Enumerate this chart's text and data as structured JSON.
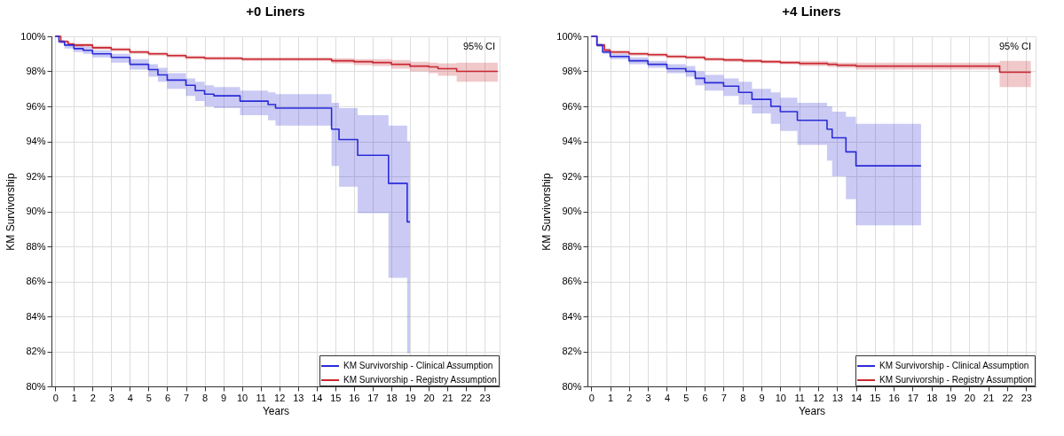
{
  "chart_data": [
    {
      "type": "step",
      "title": "+0 Liners",
      "xlabel": "Years",
      "ylabel": "KM Survivorship",
      "annotations": [
        "95% CI"
      ],
      "legend": "bottom right",
      "grid": true,
      "line_style": "solid",
      "xlim": [
        -0.2,
        23.8
      ],
      "xticks": [
        0,
        1,
        2,
        3,
        4,
        5,
        6,
        7,
        8,
        9,
        10,
        11,
        12,
        13,
        14,
        15,
        16,
        17,
        18,
        19,
        20,
        21,
        22,
        23
      ],
      "ylim": [
        80,
        100
      ],
      "yticks": [
        {
          "value": 80,
          "label": "80%"
        },
        {
          "value": 82,
          "label": "82%"
        },
        {
          "value": 84,
          "label": "84%"
        },
        {
          "value": 86,
          "label": "86%"
        },
        {
          "value": 88,
          "label": "88%"
        },
        {
          "value": 90,
          "label": "90%"
        },
        {
          "value": 92,
          "label": "92%"
        },
        {
          "value": 94,
          "label": "94%"
        },
        {
          "value": 96,
          "label": "96%"
        },
        {
          "value": 98,
          "label": "98%"
        },
        {
          "value": 100,
          "label": "100%"
        }
      ],
      "series": [
        {
          "name": "KM Survivorship - Clinical Assumption",
          "color": "#2b2bd8",
          "x": [
            0,
            0.2,
            0.5,
            1,
            1.5,
            2,
            3,
            4,
            5,
            5.5,
            6,
            7,
            7.5,
            8,
            8.5,
            9.9,
            11.4,
            11.8,
            14.8,
            15.2,
            16.2,
            17.85,
            18.85,
            19.0
          ],
          "values": [
            100,
            99.7,
            99.5,
            99.3,
            99.2,
            99.0,
            98.8,
            98.4,
            98.1,
            97.8,
            97.5,
            97.2,
            96.9,
            96.7,
            96.6,
            96.3,
            96.1,
            95.9,
            94.7,
            94.1,
            93.2,
            91.6,
            89.4,
            89.4
          ],
          "lower": [
            100,
            99.6,
            99.3,
            99.1,
            99.0,
            98.8,
            98.5,
            98.1,
            97.7,
            97.4,
            97.0,
            96.6,
            96.3,
            96.0,
            95.9,
            95.5,
            95.2,
            94.9,
            92.6,
            91.4,
            89.9,
            86.2,
            81.9,
            81.9
          ],
          "upper": [
            100,
            99.8,
            99.6,
            99.5,
            99.4,
            99.2,
            99.0,
            98.7,
            98.4,
            98.2,
            97.9,
            97.6,
            97.4,
            97.2,
            97.1,
            96.9,
            96.8,
            96.7,
            96.2,
            95.9,
            95.5,
            94.9,
            94.0,
            94.0
          ]
        },
        {
          "name": "KM Survivorship - Registry Assumption",
          "color": "#c8262e",
          "x": [
            0,
            0.3,
            0.7,
            1,
            2,
            3,
            4,
            5,
            6,
            7,
            8,
            10,
            14.8,
            16,
            17,
            18,
            19,
            20,
            20.5,
            21.5,
            23.7
          ],
          "values": [
            100,
            99.7,
            99.55,
            99.5,
            99.35,
            99.25,
            99.1,
            99.0,
            98.9,
            98.8,
            98.75,
            98.7,
            98.6,
            98.55,
            98.5,
            98.4,
            98.3,
            98.25,
            98.15,
            98.0,
            98.0
          ],
          "lower": [
            100,
            99.6,
            99.45,
            99.4,
            99.25,
            99.15,
            99.0,
            98.9,
            98.8,
            98.7,
            98.65,
            98.6,
            98.45,
            98.35,
            98.3,
            98.15,
            98.0,
            97.9,
            97.75,
            97.4,
            97.4
          ],
          "upper": [
            100,
            99.8,
            99.65,
            99.6,
            99.45,
            99.35,
            99.2,
            99.1,
            99.0,
            98.9,
            98.85,
            98.8,
            98.75,
            98.7,
            98.7,
            98.65,
            98.55,
            98.5,
            98.45,
            98.5,
            98.5
          ]
        }
      ]
    },
    {
      "type": "step",
      "title": "+4 Liners",
      "xlabel": "Years",
      "ylabel": "KM Survivorship",
      "annotations": [
        "95% CI"
      ],
      "legend": "bottom right",
      "grid": true,
      "line_style": "solid",
      "xlim": [
        -0.2,
        23.5
      ],
      "xticks": [
        0,
        1,
        2,
        3,
        4,
        5,
        6,
        7,
        8,
        9,
        10,
        11,
        12,
        13,
        14,
        15,
        16,
        17,
        18,
        19,
        20,
        21,
        22,
        23
      ],
      "ylim": [
        80,
        100
      ],
      "yticks": [
        {
          "value": 80,
          "label": "80%"
        },
        {
          "value": 82,
          "label": "82%"
        },
        {
          "value": 84,
          "label": "84%"
        },
        {
          "value": 86,
          "label": "86%"
        },
        {
          "value": 88,
          "label": "88%"
        },
        {
          "value": 90,
          "label": "90%"
        },
        {
          "value": 92,
          "label": "92%"
        },
        {
          "value": 94,
          "label": "94%"
        },
        {
          "value": 96,
          "label": "96%"
        },
        {
          "value": 98,
          "label": "98%"
        },
        {
          "value": 100,
          "label": "100%"
        }
      ],
      "series": [
        {
          "name": "KM Survivorship - Clinical Assumption",
          "color": "#2b2bd8",
          "x": [
            0,
            0.3,
            0.6,
            1,
            2,
            3,
            4,
            5,
            5.5,
            6,
            7,
            7.8,
            8.5,
            9.5,
            10,
            10.9,
            12.47,
            12.74,
            13.47,
            14.0,
            17.44
          ],
          "values": [
            100,
            99.5,
            99.1,
            98.85,
            98.6,
            98.4,
            98.15,
            98.0,
            97.6,
            97.35,
            97.15,
            96.8,
            96.4,
            96.0,
            95.7,
            95.2,
            94.7,
            94.2,
            93.4,
            92.6,
            92.6
          ],
          "lower": [
            100,
            99.4,
            99.0,
            98.7,
            98.4,
            98.2,
            97.9,
            97.7,
            97.2,
            96.9,
            96.6,
            96.1,
            95.6,
            95.0,
            94.6,
            93.8,
            92.9,
            92.0,
            90.7,
            89.2,
            89.2
          ],
          "upper": [
            100,
            99.6,
            99.3,
            99.0,
            98.8,
            98.6,
            98.4,
            98.3,
            98.0,
            97.8,
            97.6,
            97.4,
            97.0,
            96.8,
            96.5,
            96.2,
            96.0,
            95.7,
            95.4,
            95.0,
            95.0
          ]
        },
        {
          "name": "KM Survivorship - Registry Assumption",
          "color": "#c8262e",
          "x": [
            0,
            0.3,
            0.7,
            1,
            2,
            3,
            4,
            5,
            6,
            7,
            8,
            9,
            10,
            11,
            12.5,
            13,
            14,
            21.6,
            23.25
          ],
          "values": [
            100,
            99.5,
            99.2,
            99.1,
            99.0,
            98.95,
            98.85,
            98.8,
            98.7,
            98.65,
            98.6,
            98.55,
            98.5,
            98.45,
            98.4,
            98.35,
            98.3,
            97.95,
            97.95
          ],
          "lower": [
            100,
            99.4,
            99.1,
            99.0,
            98.9,
            98.85,
            98.75,
            98.7,
            98.6,
            98.55,
            98.5,
            98.45,
            98.4,
            98.3,
            98.25,
            98.2,
            98.1,
            97.1,
            97.1
          ],
          "upper": [
            100,
            99.6,
            99.3,
            99.2,
            99.1,
            99.05,
            98.95,
            98.9,
            98.8,
            98.75,
            98.7,
            98.65,
            98.6,
            98.6,
            98.55,
            98.5,
            98.5,
            98.6,
            98.6
          ]
        }
      ]
    }
  ]
}
